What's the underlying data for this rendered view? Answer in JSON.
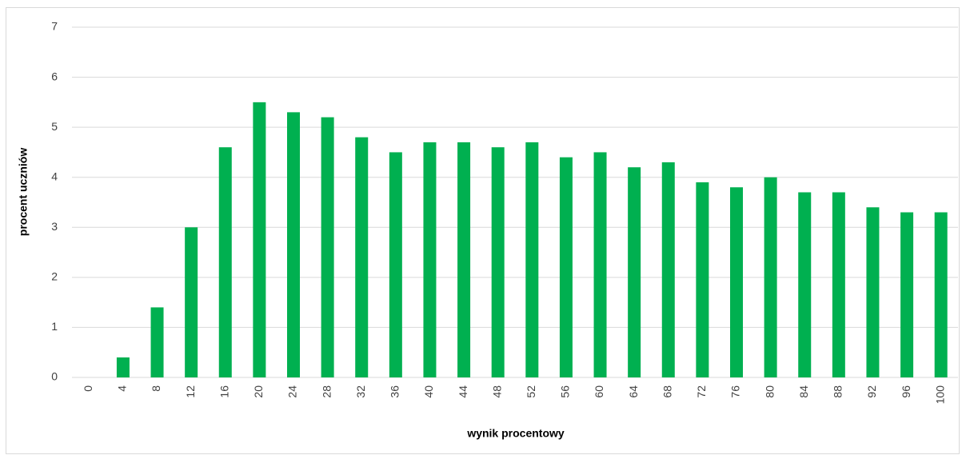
{
  "chart_data": {
    "type": "bar",
    "x_label": "wynik procentowy",
    "y_label": "procent uczniów",
    "categories": [
      "0",
      "4",
      "8",
      "12",
      "16",
      "20",
      "24",
      "28",
      "32",
      "36",
      "40",
      "44",
      "48",
      "52",
      "56",
      "60",
      "64",
      "68",
      "72",
      "76",
      "80",
      "84",
      "88",
      "92",
      "96",
      "100"
    ],
    "values": [
      0,
      0.4,
      1.4,
      3.0,
      4.6,
      5.5,
      5.3,
      5.2,
      4.8,
      4.5,
      4.7,
      4.7,
      4.6,
      4.7,
      4.4,
      4.5,
      4.2,
      4.3,
      3.9,
      3.8,
      4.0,
      3.7,
      3.7,
      3.4,
      3.3,
      3.3
    ],
    "color": "#00b050",
    "ylim": [
      0,
      7
    ],
    "yticks": [
      0,
      1,
      2,
      3,
      4,
      5,
      6,
      7
    ],
    "grid": true
  }
}
